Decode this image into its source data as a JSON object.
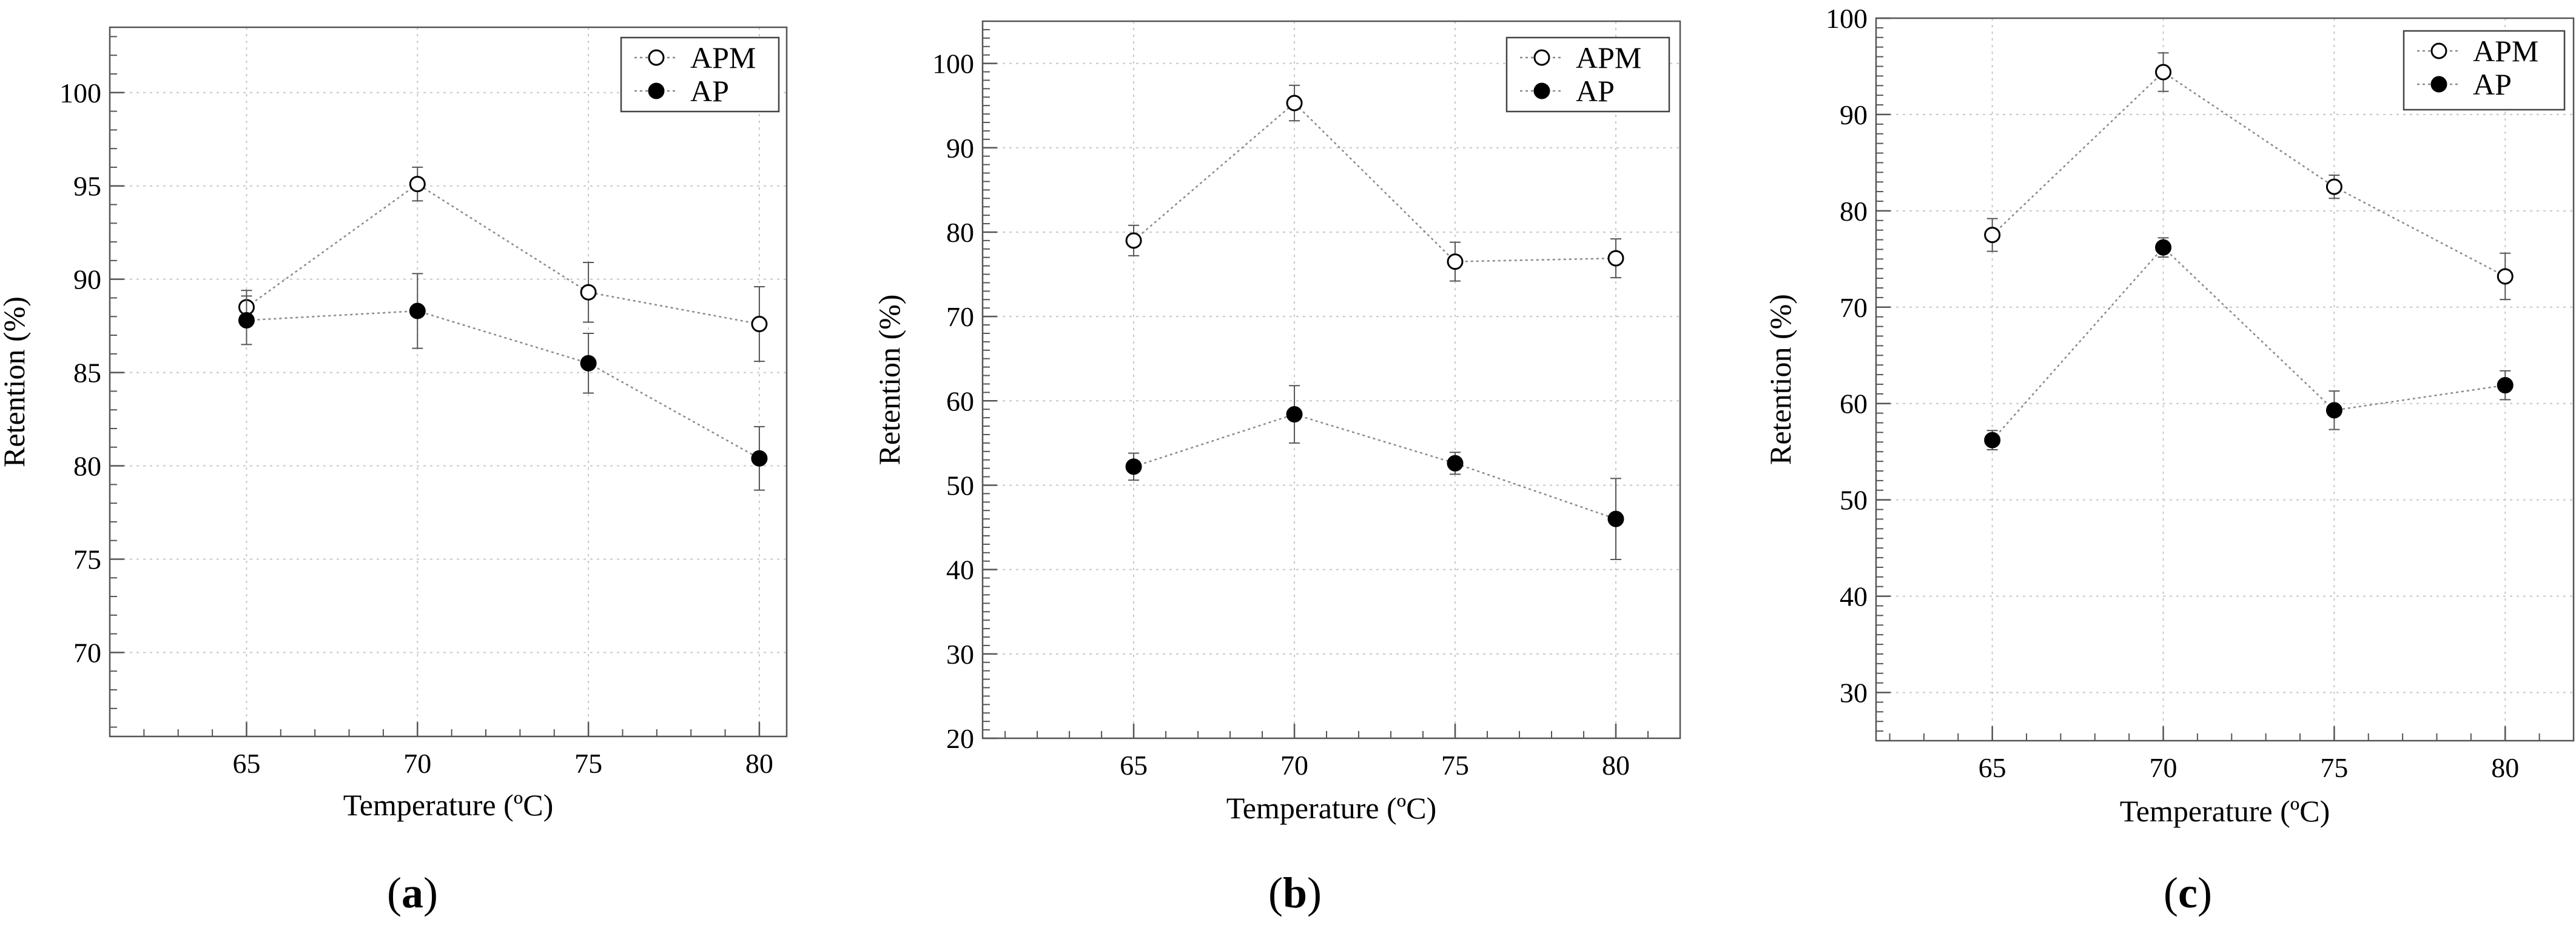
{
  "figure": {
    "panels": [
      "a",
      "b",
      "c"
    ]
  },
  "chart_data": [
    {
      "type": "line",
      "panel_label": "a",
      "caption_open": "(",
      "caption_close": ")",
      "xlabel": "Temperature (ºC)",
      "ylabel": "Retention (%)",
      "x": [
        65,
        70,
        75,
        80
      ],
      "xticks": [
        65,
        70,
        75,
        80
      ],
      "xlim": [
        61,
        80.8
      ],
      "ylim": [
        65.5,
        103.5
      ],
      "yticks": [
        70,
        75,
        80,
        85,
        90,
        95,
        100
      ],
      "legend_position": "top-right",
      "grid": true,
      "series": [
        {
          "name": "APM",
          "marker": "open-circle",
          "values": [
            88.5,
            95.1,
            89.3,
            87.6
          ],
          "errors": [
            0.9,
            0.9,
            1.6,
            2.0
          ]
        },
        {
          "name": "AP",
          "marker": "filled-circle",
          "values": [
            87.8,
            88.3,
            85.5,
            80.4
          ],
          "errors": [
            1.3,
            2.0,
            1.6,
            1.7
          ]
        }
      ]
    },
    {
      "type": "line",
      "panel_label": "b",
      "caption_open": "(",
      "caption_close": ")",
      "xlabel": "Temperature (ºC)",
      "ylabel": "Retention (%)",
      "x": [
        65,
        70,
        75,
        80
      ],
      "xticks": [
        65,
        70,
        75,
        80
      ],
      "xlim": [
        60.3,
        82
      ],
      "ylim": [
        20,
        105
      ],
      "yticks": [
        20,
        30,
        40,
        50,
        60,
        70,
        80,
        90,
        100
      ],
      "legend_position": "top-right",
      "grid": true,
      "series": [
        {
          "name": "APM",
          "marker": "open-circle",
          "values": [
            79.0,
            95.3,
            76.5,
            76.9
          ],
          "errors": [
            1.8,
            2.1,
            2.3,
            2.3
          ]
        },
        {
          "name": "AP",
          "marker": "filled-circle",
          "values": [
            52.2,
            58.4,
            52.6,
            46.0
          ],
          "errors": [
            1.6,
            3.4,
            1.3,
            4.8
          ]
        }
      ]
    },
    {
      "type": "line",
      "panel_label": "c",
      "caption_open": "(",
      "caption_close": ")",
      "xlabel": "Temperature (ºC)",
      "ylabel": "Retention (%)",
      "x": [
        65,
        70,
        75,
        80
      ],
      "xticks": [
        65,
        70,
        75,
        80
      ],
      "xlim": [
        61.6,
        82
      ],
      "ylim": [
        25,
        100
      ],
      "yticks": [
        30,
        40,
        50,
        60,
        70,
        80,
        90,
        100
      ],
      "legend_position": "top-right",
      "grid": true,
      "series": [
        {
          "name": "APM",
          "marker": "open-circle",
          "values": [
            77.5,
            94.4,
            82.5,
            73.2
          ],
          "errors": [
            1.7,
            2.0,
            1.2,
            2.4
          ]
        },
        {
          "name": "AP",
          "marker": "filled-circle",
          "values": [
            56.2,
            76.2,
            59.3,
            61.9
          ],
          "errors": [
            1.0,
            1.0,
            2.0,
            1.5
          ]
        }
      ]
    }
  ]
}
